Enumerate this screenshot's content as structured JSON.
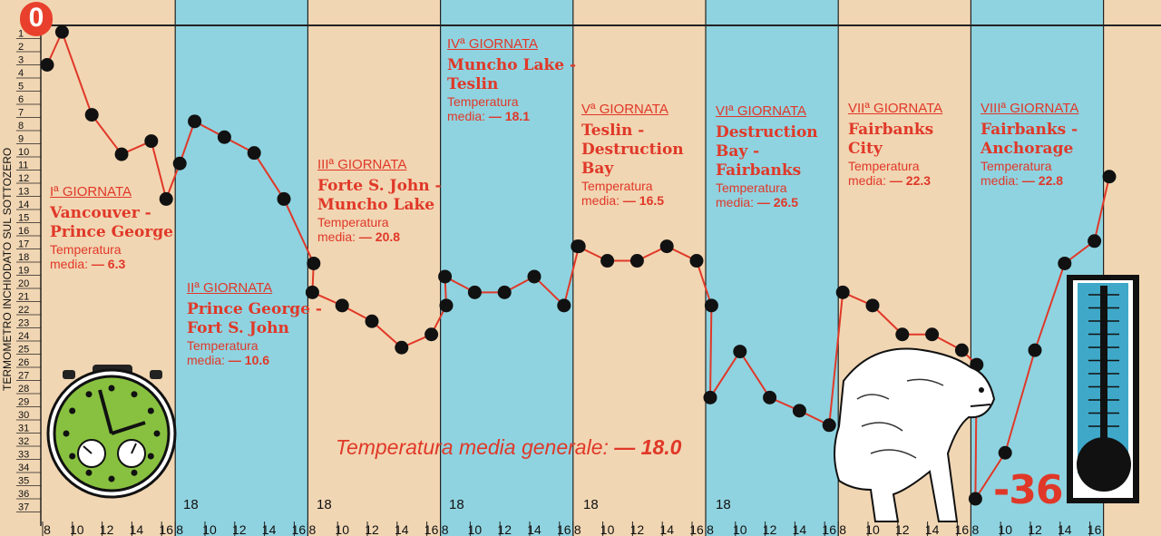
{
  "chart_data": {
    "type": "line",
    "ylabel": "TERMOMETRO INCHIODATO SUL SOTTOZERO",
    "y_ticks": [
      "1",
      "2",
      "3",
      "4",
      "5",
      "6",
      "7",
      "8",
      "9",
      "10",
      "11",
      "12",
      "13",
      "14",
      "15",
      "16",
      "17",
      "18",
      "19",
      "20",
      "21",
      "22",
      "23",
      "24",
      "25",
      "26",
      "27",
      "28",
      "29",
      "30",
      "31",
      "32",
      "33",
      "34",
      "35",
      "36",
      "37"
    ],
    "zero_label": "0",
    "x_tick_labels": [
      "8",
      "10",
      "12",
      "14",
      "16"
    ],
    "series": [
      {
        "values": [
          {
            "day": 1,
            "hour": 8,
            "t": 3
          },
          {
            "day": 1,
            "hour": 9,
            "t": 0.5
          },
          {
            "day": 1,
            "hour": 11,
            "t": 6.8
          },
          {
            "day": 1,
            "hour": 13,
            "t": 9.8
          },
          {
            "day": 1,
            "hour": 15,
            "t": 8.8
          },
          {
            "day": 1,
            "hour": 16,
            "t": 13.2
          },
          {
            "day": 2,
            "hour": 8,
            "t": 10.5
          },
          {
            "day": 2,
            "hour": 9,
            "t": 7.3
          },
          {
            "day": 2,
            "hour": 11,
            "t": 8.5
          },
          {
            "day": 2,
            "hour": 13,
            "t": 9.7
          },
          {
            "day": 2,
            "hour": 15,
            "t": 13.2
          },
          {
            "day": 2,
            "hour": 17,
            "t": 18.1
          },
          {
            "day": 3,
            "hour": 8,
            "t": 20.3
          },
          {
            "day": 3,
            "hour": 10,
            "t": 21.3
          },
          {
            "day": 3,
            "hour": 12,
            "t": 22.5
          },
          {
            "day": 3,
            "hour": 14,
            "t": 24.5
          },
          {
            "day": 3,
            "hour": 16,
            "t": 23.5
          },
          {
            "day": 3,
            "hour": 17,
            "t": 21.3
          },
          {
            "day": 4,
            "hour": 8,
            "t": 19.1
          },
          {
            "day": 4,
            "hour": 10,
            "t": 20.3
          },
          {
            "day": 4,
            "hour": 12,
            "t": 20.3
          },
          {
            "day": 4,
            "hour": 14,
            "t": 19.1
          },
          {
            "day": 4,
            "hour": 16,
            "t": 21.3
          },
          {
            "day": 4,
            "hour": 17,
            "t": 16.8
          },
          {
            "day": 5,
            "hour": 8,
            "t": 16.8
          },
          {
            "day": 5,
            "hour": 10,
            "t": 17.9
          },
          {
            "day": 5,
            "hour": 12,
            "t": 17.9
          },
          {
            "day": 5,
            "hour": 14,
            "t": 16.8
          },
          {
            "day": 5,
            "hour": 16,
            "t": 17.9
          },
          {
            "day": 5,
            "hour": 17,
            "t": 21.3
          },
          {
            "day": 6,
            "hour": 8,
            "t": 28.3
          },
          {
            "day": 6,
            "hour": 10,
            "t": 24.8
          },
          {
            "day": 6,
            "hour": 12,
            "t": 28.3
          },
          {
            "day": 6,
            "hour": 14,
            "t": 29.3
          },
          {
            "day": 6,
            "hour": 16,
            "t": 30.4
          },
          {
            "day": 7,
            "hour": 8,
            "t": 20.3
          },
          {
            "day": 7,
            "hour": 10,
            "t": 21.3
          },
          {
            "day": 7,
            "hour": 12,
            "t": 23.5
          },
          {
            "day": 7,
            "hour": 14,
            "t": 23.5
          },
          {
            "day": 7,
            "hour": 16,
            "t": 24.7
          },
          {
            "day": 7,
            "hour": 17,
            "t": 25.8
          },
          {
            "day": 8,
            "hour": 8,
            "t": 36
          },
          {
            "day": 8,
            "hour": 10,
            "t": 32.5
          },
          {
            "day": 8,
            "hour": 12,
            "t": 24.7
          },
          {
            "day": 8,
            "hour": 14,
            "t": 18.1
          },
          {
            "day": 8,
            "hour": 16,
            "t": 16.4
          },
          {
            "day": 8,
            "hour": 17,
            "t": 11.5
          }
        ]
      }
    ],
    "days": [
      {
        "title": "Iª GIORNATA",
        "route": "Vancouver -\nPrince George",
        "label": "Temperatura",
        "media_prefix": "media:",
        "media_value": "— 6.3"
      },
      {
        "title": "IIª GIORNATA",
        "route": "Prince George -\nFort S. John",
        "label": "Temperatura",
        "media_prefix": "media:",
        "media_value": "— 10.6"
      },
      {
        "title": "IIIª GIORNATA",
        "route": "Forte S. John -\nMuncho Lake",
        "label": "Temperatura",
        "media_prefix": "media:",
        "media_value": "— 20.8"
      },
      {
        "title": "IVª GIORNATA",
        "route": "Muncho Lake -\nTeslin",
        "label": "Temperatura",
        "media_prefix": "media:",
        "media_value": "— 18.1"
      },
      {
        "title": "Vª GIORNATA",
        "route": "Teslin -\nDestruction\nBay",
        "label": "Temperatura",
        "media_prefix": "media:",
        "media_value": "— 16.5"
      },
      {
        "title": "VIª GIORNATA",
        "route": "Destruction\nBay -\nFairbanks",
        "label": "Temperatura",
        "media_prefix": "media:",
        "media_value": "— 26.5"
      },
      {
        "title": "VIIª GIORNATA",
        "route": "Fairbanks\nCity",
        "label": "Temperatura",
        "media_prefix": "media:",
        "media_value": "— 22.3"
      },
      {
        "title": "VIIIª GIORNATA",
        "route": "Fairbanks -\nAnchorage",
        "label": "Temperatura",
        "media_prefix": "media:",
        "media_value": "— 22.8"
      }
    ],
    "hour_18_label": "18",
    "overall_label": "Temperatura media generale:",
    "overall_value": "— 18.0",
    "min_label": "-36",
    "colors": {
      "line": "#e03828",
      "point": "#111111",
      "stripe_a": "#f1d6b3",
      "stripe_b": "#8fd3e0",
      "text": "#e03828"
    }
  }
}
